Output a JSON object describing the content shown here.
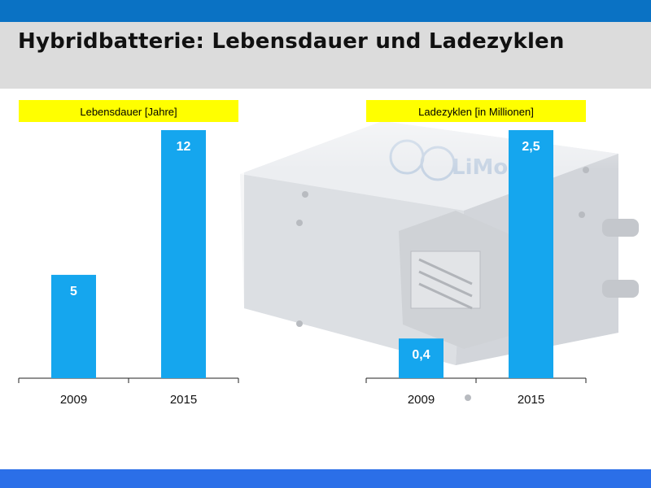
{
  "page": {
    "title": "Hybridbatterie: Lebensdauer und Ladezyklen",
    "accent_color": "#0a72c4",
    "bar_color": "#15a6ee",
    "label_bg_color": "#ffff00"
  },
  "chart_data": [
    {
      "type": "bar",
      "title": "Lebensdauer [Jahre]",
      "categories": [
        "2009",
        "2015"
      ],
      "values": [
        5,
        12
      ],
      "value_labels": [
        "5",
        "12"
      ],
      "ylim": [
        0,
        12
      ]
    },
    {
      "type": "bar",
      "title": "Ladezyklen [in Millionen]",
      "categories": [
        "2009",
        "2015"
      ],
      "values": [
        0.4,
        2.5
      ],
      "value_labels": [
        "0,4",
        "2,5"
      ],
      "ylim": [
        0,
        2.5
      ]
    }
  ]
}
